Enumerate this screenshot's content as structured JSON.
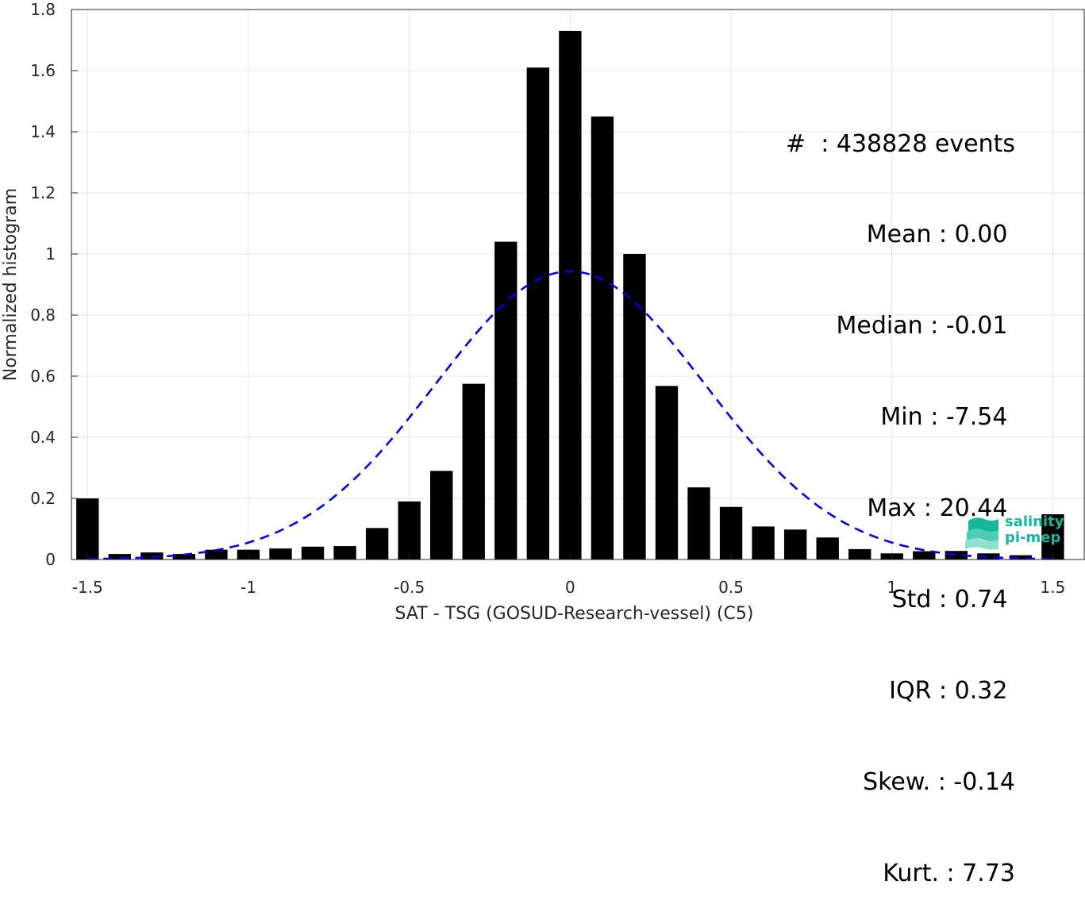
{
  "chart_data": {
    "type": "bar",
    "xlabel": "SAT - TSG (GOSUD-Research-vessel) (C5)",
    "ylabel": "Normalized histogram",
    "xlim": [
      -1.55,
      1.6
    ],
    "ylim": [
      0,
      1.8
    ],
    "grid": true,
    "bar_width": 0.07,
    "x": [
      -1.5,
      -1.4,
      -1.3,
      -1.2,
      -1.1,
      -1.0,
      -0.9,
      -0.8,
      -0.7,
      -0.6,
      -0.5,
      -0.4,
      -0.3,
      -0.2,
      -0.1,
      0.0,
      0.1,
      0.2,
      0.3,
      0.4,
      0.5,
      0.6,
      0.7,
      0.8,
      0.9,
      1.0,
      1.1,
      1.2,
      1.3,
      1.4,
      1.5
    ],
    "values": [
      0.2,
      0.018,
      0.023,
      0.018,
      0.032,
      0.032,
      0.036,
      0.042,
      0.044,
      0.103,
      0.19,
      0.29,
      0.575,
      1.04,
      1.61,
      1.73,
      1.45,
      1.0,
      0.568,
      0.236,
      0.172,
      0.108,
      0.098,
      0.072,
      0.034,
      0.02,
      0.027,
      0.028,
      0.02,
      0.014,
      0.148
    ],
    "bar_color": "#000000",
    "fit": {
      "type": "gaussian",
      "mean": 0.0,
      "std": 0.42,
      "peak": 0.943,
      "color": "#0000e6",
      "style": "dashed"
    },
    "xticks": [
      "-1.5",
      "-1",
      "-0.5",
      "0",
      "0.5",
      "1",
      "1.5"
    ],
    "xtick_values": [
      -1.5,
      -1.0,
      -0.5,
      0.0,
      0.5,
      1.0,
      1.5
    ],
    "yticks": [
      "0",
      "0.2",
      "0.4",
      "0.6",
      "0.8",
      "1",
      "1.2",
      "1.4",
      "1.6",
      "1.8"
    ],
    "ytick_values": [
      0,
      0.2,
      0.4,
      0.6,
      0.8,
      1.0,
      1.2,
      1.4,
      1.6,
      1.8
    ]
  },
  "stats": [
    "#  : 438828 events",
    "Mean : 0.00 ",
    "Median : -0.01 ",
    "Min : -7.54 ",
    "Max : 20.44 ",
    "Std : 0.74 ",
    "IQR : 0.32 ",
    "Skew. : -0.14",
    "Kurt. : 7.73"
  ],
  "logo": {
    "line1": "salinity",
    "line2": "pi-mep",
    "color": "#17b59a"
  }
}
